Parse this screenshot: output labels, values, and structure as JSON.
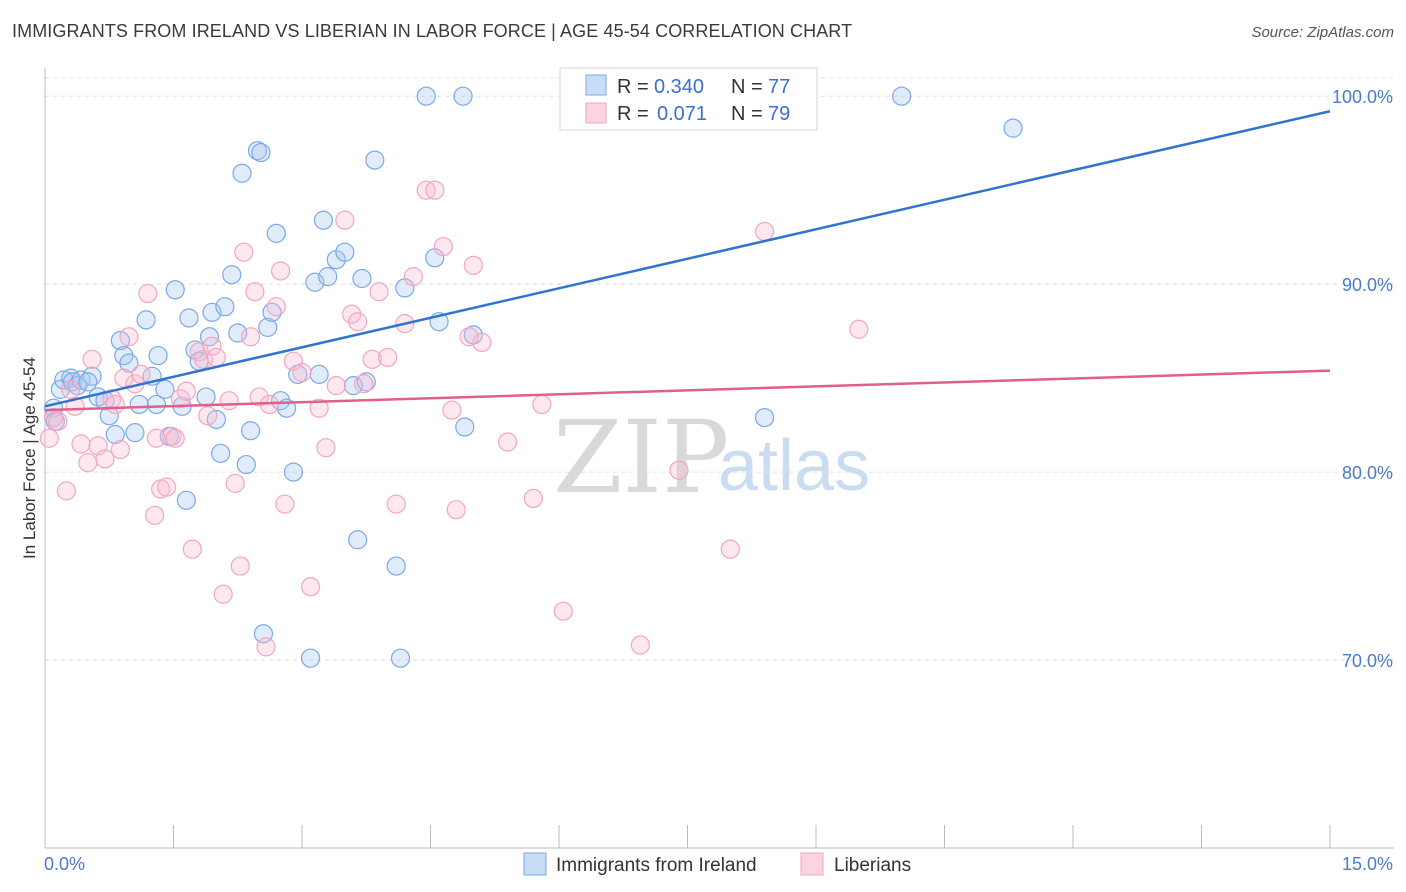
{
  "title": "IMMIGRANTS FROM IRELAND VS LIBERIAN IN LABOR FORCE | AGE 45-54 CORRELATION CHART",
  "source": "Source: ZipAtlas.com",
  "watermark": {
    "zip": "ZIP",
    "atlas": "atlas"
  },
  "chart_data": {
    "type": "scatter",
    "title": "IMMIGRANTS FROM IRELAND VS LIBERIAN IN LABOR FORCE | AGE 45-54 CORRELATION CHART",
    "xlabel": "",
    "ylabel": "In Labor Force | Age 45-54",
    "xlim": [
      0,
      15
    ],
    "ylim": [
      60,
      101.5
    ],
    "x_tick_labels": [
      "0.0%",
      "15.0%"
    ],
    "y_ticks": [
      70,
      80,
      90,
      100
    ],
    "y_tick_labels": [
      "70.0%",
      "80.0%",
      "90.0%",
      "100.0%"
    ],
    "legend": [
      {
        "r_label": "R =",
        "r_value": "0.340",
        "n_label": "N =",
        "n_value": "77"
      },
      {
        "r_label": "R =",
        "r_value": "0.071",
        "n_label": "N =",
        "n_value": "79"
      }
    ],
    "series": [
      {
        "name": "Immigrants from Ireland",
        "color": "#7aa8e8",
        "trend_color": "#2f74d0",
        "trend": [
          [
            0.0,
            83.5
          ],
          [
            15.0,
            99.2
          ]
        ],
        "points": [
          [
            0.1,
            83.4
          ],
          [
            0.1,
            82.9
          ],
          [
            0.12,
            82.7
          ],
          [
            0.18,
            84.4
          ],
          [
            0.22,
            84.9
          ],
          [
            0.3,
            85.0
          ],
          [
            0.32,
            84.8
          ],
          [
            0.38,
            84.6
          ],
          [
            0.42,
            84.9
          ],
          [
            0.55,
            85.1
          ],
          [
            0.62,
            84.0
          ],
          [
            0.7,
            83.8
          ],
          [
            0.75,
            83.0
          ],
          [
            0.82,
            82.0
          ],
          [
            0.88,
            87.0
          ],
          [
            0.92,
            86.2
          ],
          [
            0.98,
            85.8
          ],
          [
            1.05,
            82.1
          ],
          [
            1.1,
            83.6
          ],
          [
            1.18,
            88.1
          ],
          [
            1.25,
            85.1
          ],
          [
            1.3,
            83.6
          ],
          [
            1.32,
            86.2
          ],
          [
            1.4,
            84.4
          ],
          [
            1.45,
            81.9
          ],
          [
            1.52,
            89.7
          ],
          [
            1.6,
            83.5
          ],
          [
            1.65,
            78.5
          ],
          [
            1.68,
            88.2
          ],
          [
            1.75,
            86.5
          ],
          [
            1.8,
            85.9
          ],
          [
            1.88,
            84.0
          ],
          [
            1.92,
            87.2
          ],
          [
            1.95,
            88.5
          ],
          [
            2.0,
            82.8
          ],
          [
            2.05,
            81.0
          ],
          [
            2.1,
            88.8
          ],
          [
            2.18,
            90.5
          ],
          [
            2.25,
            87.4
          ],
          [
            2.3,
            95.9
          ],
          [
            2.35,
            80.4
          ],
          [
            2.4,
            82.2
          ],
          [
            2.48,
            97.1
          ],
          [
            2.52,
            97.0
          ],
          [
            2.55,
            71.4
          ],
          [
            2.6,
            87.7
          ],
          [
            2.65,
            88.5
          ],
          [
            2.7,
            92.7
          ],
          [
            2.75,
            83.8
          ],
          [
            2.82,
            83.4
          ],
          [
            2.9,
            80.0
          ],
          [
            2.95,
            85.2
          ],
          [
            3.1,
            70.1
          ],
          [
            3.15,
            90.1
          ],
          [
            3.2,
            85.2
          ],
          [
            3.25,
            93.4
          ],
          [
            3.3,
            90.4
          ],
          [
            3.4,
            91.3
          ],
          [
            3.5,
            91.7
          ],
          [
            3.6,
            84.6
          ],
          [
            3.65,
            76.4
          ],
          [
            3.7,
            90.3
          ],
          [
            3.75,
            84.8
          ],
          [
            3.85,
            96.6
          ],
          [
            4.1,
            75.0
          ],
          [
            4.15,
            70.1
          ],
          [
            4.2,
            89.8
          ],
          [
            4.45,
            100.0
          ],
          [
            4.55,
            91.4
          ],
          [
            4.6,
            88.0
          ],
          [
            4.88,
            100.0
          ],
          [
            4.9,
            82.4
          ],
          [
            5.0,
            87.3
          ],
          [
            10.0,
            100.0
          ],
          [
            11.3,
            98.3
          ],
          [
            8.4,
            82.9
          ],
          [
            0.5,
            84.8
          ]
        ]
      },
      {
        "name": "Liberians",
        "color": "#f2a6c0",
        "trend_color": "#e0608a",
        "trend": [
          [
            0.0,
            83.3
          ],
          [
            15.0,
            85.4
          ]
        ],
        "points": [
          [
            0.05,
            81.8
          ],
          [
            0.1,
            82.9
          ],
          [
            0.15,
            82.7
          ],
          [
            0.25,
            79.0
          ],
          [
            0.3,
            84.4
          ],
          [
            0.35,
            83.5
          ],
          [
            0.42,
            81.5
          ],
          [
            0.5,
            80.5
          ],
          [
            0.55,
            86.0
          ],
          [
            0.62,
            81.4
          ],
          [
            0.7,
            80.7
          ],
          [
            0.78,
            83.9
          ],
          [
            0.82,
            83.6
          ],
          [
            0.88,
            81.2
          ],
          [
            0.92,
            85.0
          ],
          [
            0.98,
            87.2
          ],
          [
            1.05,
            84.7
          ],
          [
            1.12,
            85.2
          ],
          [
            1.2,
            89.5
          ],
          [
            1.28,
            77.7
          ],
          [
            1.3,
            81.8
          ],
          [
            1.35,
            79.1
          ],
          [
            1.42,
            79.2
          ],
          [
            1.48,
            81.9
          ],
          [
            1.52,
            81.8
          ],
          [
            1.58,
            83.9
          ],
          [
            1.65,
            84.3
          ],
          [
            1.72,
            75.9
          ],
          [
            1.8,
            86.4
          ],
          [
            1.85,
            86.0
          ],
          [
            1.9,
            83.0
          ],
          [
            1.95,
            86.7
          ],
          [
            2.0,
            86.1
          ],
          [
            2.08,
            73.5
          ],
          [
            2.15,
            83.8
          ],
          [
            2.22,
            79.4
          ],
          [
            2.28,
            75.0
          ],
          [
            2.32,
            91.7
          ],
          [
            2.4,
            87.2
          ],
          [
            2.45,
            89.6
          ],
          [
            2.5,
            84.0
          ],
          [
            2.58,
            70.7
          ],
          [
            2.62,
            83.6
          ],
          [
            2.7,
            88.8
          ],
          [
            2.75,
            90.7
          ],
          [
            2.8,
            78.3
          ],
          [
            2.9,
            85.9
          ],
          [
            3.0,
            85.3
          ],
          [
            3.1,
            73.9
          ],
          [
            3.2,
            83.4
          ],
          [
            3.28,
            81.3
          ],
          [
            3.4,
            84.6
          ],
          [
            3.5,
            93.4
          ],
          [
            3.58,
            88.4
          ],
          [
            3.65,
            88.0
          ],
          [
            3.72,
            84.7
          ],
          [
            3.82,
            86.0
          ],
          [
            3.9,
            89.6
          ],
          [
            4.0,
            86.1
          ],
          [
            4.1,
            78.3
          ],
          [
            4.2,
            87.9
          ],
          [
            4.3,
            90.4
          ],
          [
            4.45,
            95.0
          ],
          [
            4.55,
            95.0
          ],
          [
            4.65,
            92.0
          ],
          [
            4.75,
            83.3
          ],
          [
            4.8,
            78.0
          ],
          [
            5.0,
            91.0
          ],
          [
            5.1,
            86.9
          ],
          [
            5.4,
            81.6
          ],
          [
            5.7,
            78.6
          ],
          [
            5.8,
            83.6
          ],
          [
            6.05,
            72.6
          ],
          [
            6.95,
            70.8
          ],
          [
            7.4,
            80.1
          ],
          [
            8.0,
            75.9
          ],
          [
            8.4,
            92.8
          ],
          [
            9.5,
            87.6
          ],
          [
            4.95,
            87.2
          ]
        ]
      }
    ]
  }
}
